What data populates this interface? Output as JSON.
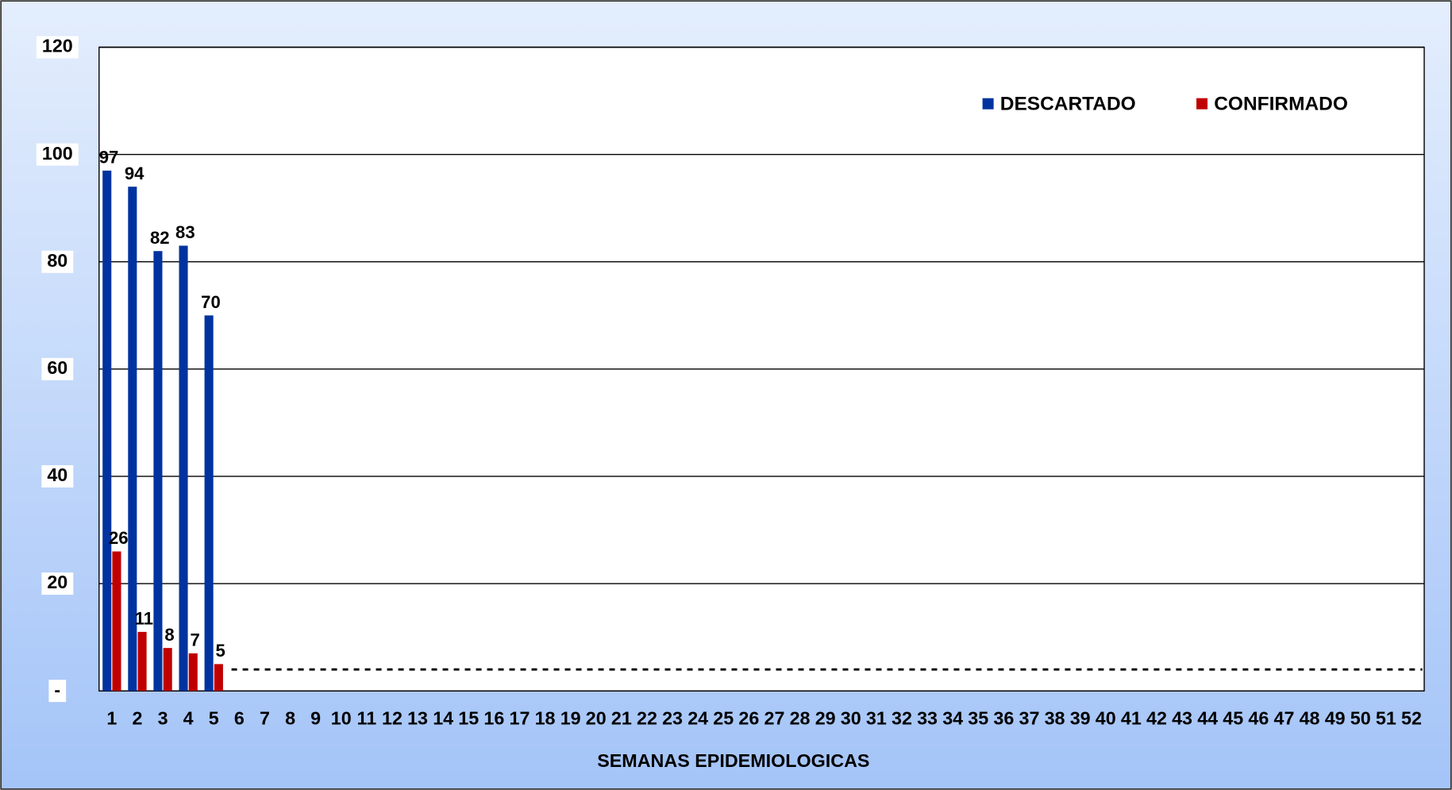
{
  "chart_data": {
    "type": "bar",
    "x_label": "SEMANAS EPIDEMIOLOGICAS",
    "categories": [
      1,
      2,
      3,
      4,
      5,
      6,
      7,
      8,
      9,
      10,
      11,
      12,
      13,
      14,
      15,
      16,
      17,
      18,
      19,
      20,
      21,
      22,
      23,
      24,
      25,
      26,
      27,
      28,
      29,
      30,
      31,
      32,
      33,
      34,
      35,
      36,
      37,
      38,
      39,
      40,
      41,
      42,
      43,
      44,
      45,
      46,
      47,
      48,
      49,
      50,
      51,
      52
    ],
    "series": [
      {
        "name": "DESCARTADO",
        "color": "#0033a0",
        "values": [
          97,
          94,
          82,
          83,
          70,
          null,
          null,
          null,
          null,
          null,
          null,
          null,
          null,
          null,
          null,
          null,
          null,
          null,
          null,
          null,
          null,
          null,
          null,
          null,
          null,
          null,
          null,
          null,
          null,
          null,
          null,
          null,
          null,
          null,
          null,
          null,
          null,
          null,
          null,
          null,
          null,
          null,
          null,
          null,
          null,
          null,
          null,
          null,
          null,
          null,
          null,
          null
        ]
      },
      {
        "name": "CONFIRMADO",
        "color": "#c00000",
        "values": [
          26,
          11,
          8,
          7,
          5,
          null,
          null,
          null,
          null,
          null,
          null,
          null,
          null,
          null,
          null,
          null,
          null,
          null,
          null,
          null,
          null,
          null,
          null,
          null,
          null,
          null,
          null,
          null,
          null,
          null,
          null,
          null,
          null,
          null,
          null,
          null,
          null,
          null,
          null,
          null,
          null,
          null,
          null,
          null,
          null,
          null,
          null,
          null,
          null,
          null,
          null,
          null
        ]
      }
    ],
    "ylim": [
      0,
      120
    ],
    "yticks": [
      {
        "value": 0,
        "label": "-"
      },
      20,
      40,
      60,
      80,
      100,
      120
    ],
    "grid": true,
    "legend": "top-right",
    "threshold_line": {
      "value": 4,
      "style": "dashed"
    }
  }
}
